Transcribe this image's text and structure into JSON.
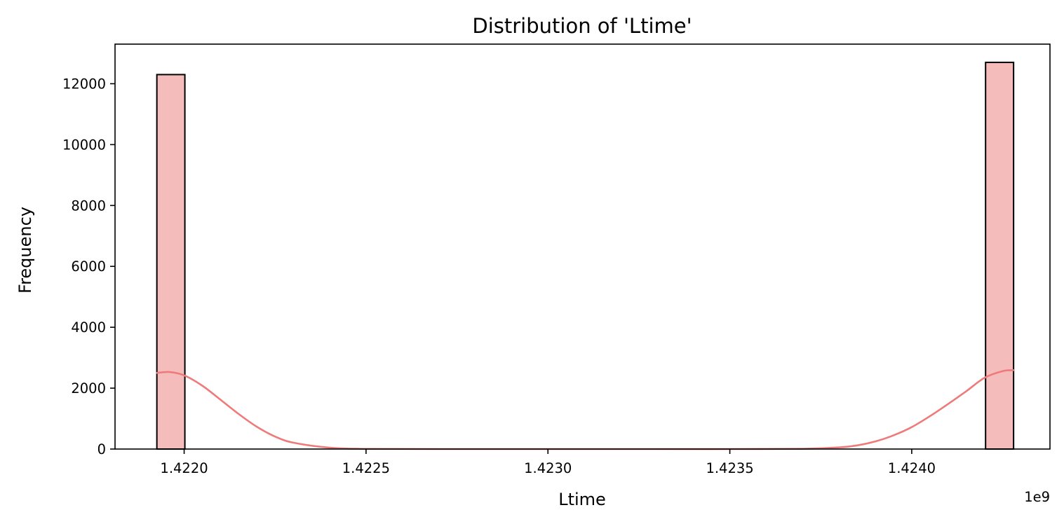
{
  "chart_data": {
    "type": "bar",
    "title": "Distribution of 'Ltime'",
    "xlabel": "Ltime",
    "ylabel": "Frequency",
    "x_offset_label": "1e9",
    "x_offset_factor": 1000000000,
    "xlim": [
      1.42181,
      1.42438
    ],
    "ylim": [
      0,
      13300
    ],
    "xticks": [
      1.422,
      1.4225,
      1.423,
      1.4235,
      1.424
    ],
    "xtick_labels": [
      "1.4220",
      "1.4225",
      "1.4230",
      "1.4235",
      "1.4240"
    ],
    "yticks": [
      0,
      2000,
      4000,
      6000,
      8000,
      10000,
      12000
    ],
    "ytick_labels": [
      "0",
      "2000",
      "4000",
      "6000",
      "8000",
      "10000",
      "12000"
    ],
    "bar_color": "#f5bcbc",
    "bar_edge_color": "#000000",
    "kde_color": "#ee7b7b",
    "bars": [
      {
        "x0": 1.421925,
        "x1": 1.422002,
        "count": 12300
      },
      {
        "x0": 1.424203,
        "x1": 1.42428,
        "count": 12700
      }
    ],
    "kde": {
      "x": [
        1.421925,
        1.42196,
        1.422,
        1.42205,
        1.4221,
        1.42215,
        1.4222,
        1.42225,
        1.4223,
        1.4224,
        1.4225,
        1.4227,
        1.423,
        1.4233,
        1.4235,
        1.4237,
        1.4238,
        1.42385,
        1.4239,
        1.42395,
        1.424,
        1.42405,
        1.4241,
        1.42415,
        1.4242,
        1.42425,
        1.42428
      ],
      "y": [
        2500,
        2530,
        2420,
        2080,
        1620,
        1150,
        730,
        410,
        210,
        45,
        6,
        0,
        0,
        0,
        0,
        8,
        55,
        120,
        250,
        450,
        720,
        1080,
        1480,
        1900,
        2340,
        2560,
        2590
      ]
    }
  }
}
